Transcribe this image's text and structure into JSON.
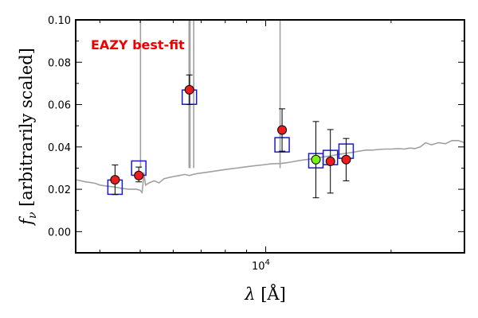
{
  "chart_data": {
    "type": "scatter",
    "title": "",
    "xlabel": "λ [Å]",
    "ylabel": "f_ν [arbitrarily scaled]",
    "xlabel_parts": {
      "symbol": "λ",
      "unit": "[Å]"
    },
    "ylabel_parts": {
      "symbol": "f",
      "subscript": "ν",
      "unit": "[arbitrarily scaled]"
    },
    "xscale": "log",
    "xlim": [
      3500,
      30000
    ],
    "ylim": [
      -0.01,
      0.1
    ],
    "grid": false,
    "x_ticks": [
      {
        "value": 10000,
        "label": "10⁴"
      }
    ],
    "x_tick_label_parts": [
      {
        "base": "10",
        "exp": "4"
      }
    ],
    "y_ticks": [
      {
        "value": 0.0,
        "label": "0.00"
      },
      {
        "value": 0.02,
        "label": "0.02"
      },
      {
        "value": 0.04,
        "label": "0.04"
      },
      {
        "value": 0.06,
        "label": "0.06"
      },
      {
        "value": 0.08,
        "label": "0.08"
      },
      {
        "value": 0.1,
        "label": "0.10"
      }
    ],
    "annotation": {
      "text": "EAZY best-fit",
      "color": "#ee0000",
      "placement": "top-left"
    },
    "colors": {
      "template": "#a0a0a0",
      "model_square": "#1a1acc",
      "observed": "#ee1c1c",
      "highlight": "#7cf21c",
      "errorbar": "#000000"
    },
    "series": [
      {
        "kind": "line",
        "points": [
          [
            3500,
            0.0245
          ],
          [
            3600,
            0.024
          ],
          [
            3700,
            0.0235
          ],
          [
            3800,
            0.0232
          ],
          [
            3900,
            0.0228
          ],
          [
            4000,
            0.022
          ],
          [
            4150,
            0.0215
          ],
          [
            4300,
            0.0212
          ],
          [
            4500,
            0.0205
          ],
          [
            4700,
            0.02
          ],
          [
            4900,
            0.02
          ],
          [
            5000,
            0.0195
          ],
          [
            5050,
            0.0185
          ],
          [
            5080,
            0.023
          ],
          [
            5100,
            0.028
          ],
          [
            5150,
            0.022
          ],
          [
            5250,
            0.023
          ],
          [
            5400,
            0.024
          ],
          [
            5550,
            0.023
          ],
          [
            5700,
            0.025
          ],
          [
            5850,
            0.0255
          ],
          [
            6000,
            0.026
          ],
          [
            6200,
            0.0265
          ],
          [
            6400,
            0.027
          ],
          [
            6560,
            0.0265
          ],
          [
            6700,
            0.027
          ],
          [
            6900,
            0.0275
          ],
          [
            7200,
            0.028
          ],
          [
            7500,
            0.0285
          ],
          [
            7800,
            0.029
          ],
          [
            8100,
            0.0295
          ],
          [
            8500,
            0.03
          ],
          [
            8900,
            0.0305
          ],
          [
            9300,
            0.031
          ],
          [
            9800,
            0.0315
          ],
          [
            10300,
            0.032
          ],
          [
            10900,
            0.0322
          ],
          [
            11200,
            0.0325
          ],
          [
            11600,
            0.033
          ],
          [
            12000,
            0.0335
          ],
          [
            12500,
            0.034
          ],
          [
            13000,
            0.0345
          ],
          [
            13500,
            0.035
          ],
          [
            14000,
            0.0355
          ],
          [
            14500,
            0.036
          ],
          [
            15000,
            0.0365
          ],
          [
            15600,
            0.037
          ],
          [
            16200,
            0.0375
          ],
          [
            16800,
            0.038
          ],
          [
            17400,
            0.0385
          ],
          [
            18000,
            0.0385
          ],
          [
            18700,
            0.0388
          ],
          [
            19300,
            0.039
          ],
          [
            20000,
            0.039
          ],
          [
            20800,
            0.0392
          ],
          [
            21500,
            0.039
          ],
          [
            22200,
            0.0395
          ],
          [
            22800,
            0.0392
          ],
          [
            23500,
            0.04
          ],
          [
            24200,
            0.042
          ],
          [
            25000,
            0.041
          ],
          [
            26000,
            0.042
          ],
          [
            27000,
            0.0415
          ],
          [
            28000,
            0.043
          ],
          [
            29000,
            0.043
          ],
          [
            30000,
            0.042
          ]
        ]
      },
      {
        "kind": "emission_lines",
        "x": [
          5008,
          6550,
          6565,
          6585,
          6720,
          10830
        ]
      },
      {
        "kind": "model_squares",
        "points": [
          [
            4350,
            0.021
          ],
          [
            4960,
            0.03
          ],
          [
            6560,
            0.0635
          ],
          [
            10950,
            0.041
          ],
          [
            13200,
            0.0335
          ],
          [
            14300,
            0.035
          ],
          [
            15600,
            0.038
          ]
        ]
      },
      {
        "kind": "observed_points",
        "points": [
          {
            "x": 4350,
            "y": 0.0245,
            "err_low": 0.007,
            "err_high": 0.007
          },
          {
            "x": 4960,
            "y": 0.0265,
            "err_low": 0.003,
            "err_high": 0.004
          },
          {
            "x": 6560,
            "y": 0.067,
            "err_low": 0.007,
            "err_high": 0.007
          },
          {
            "x": 10950,
            "y": 0.048,
            "err_low": 0.01,
            "err_high": 0.01
          },
          {
            "x": 13200,
            "y": 0.034,
            "err_low": 0.018,
            "err_high": 0.018,
            "highlight": true
          },
          {
            "x": 14300,
            "y": 0.0332,
            "err_low": 0.015,
            "err_high": 0.015
          },
          {
            "x": 15600,
            "y": 0.034,
            "err_low": 0.01,
            "err_high": 0.01
          }
        ]
      }
    ]
  }
}
